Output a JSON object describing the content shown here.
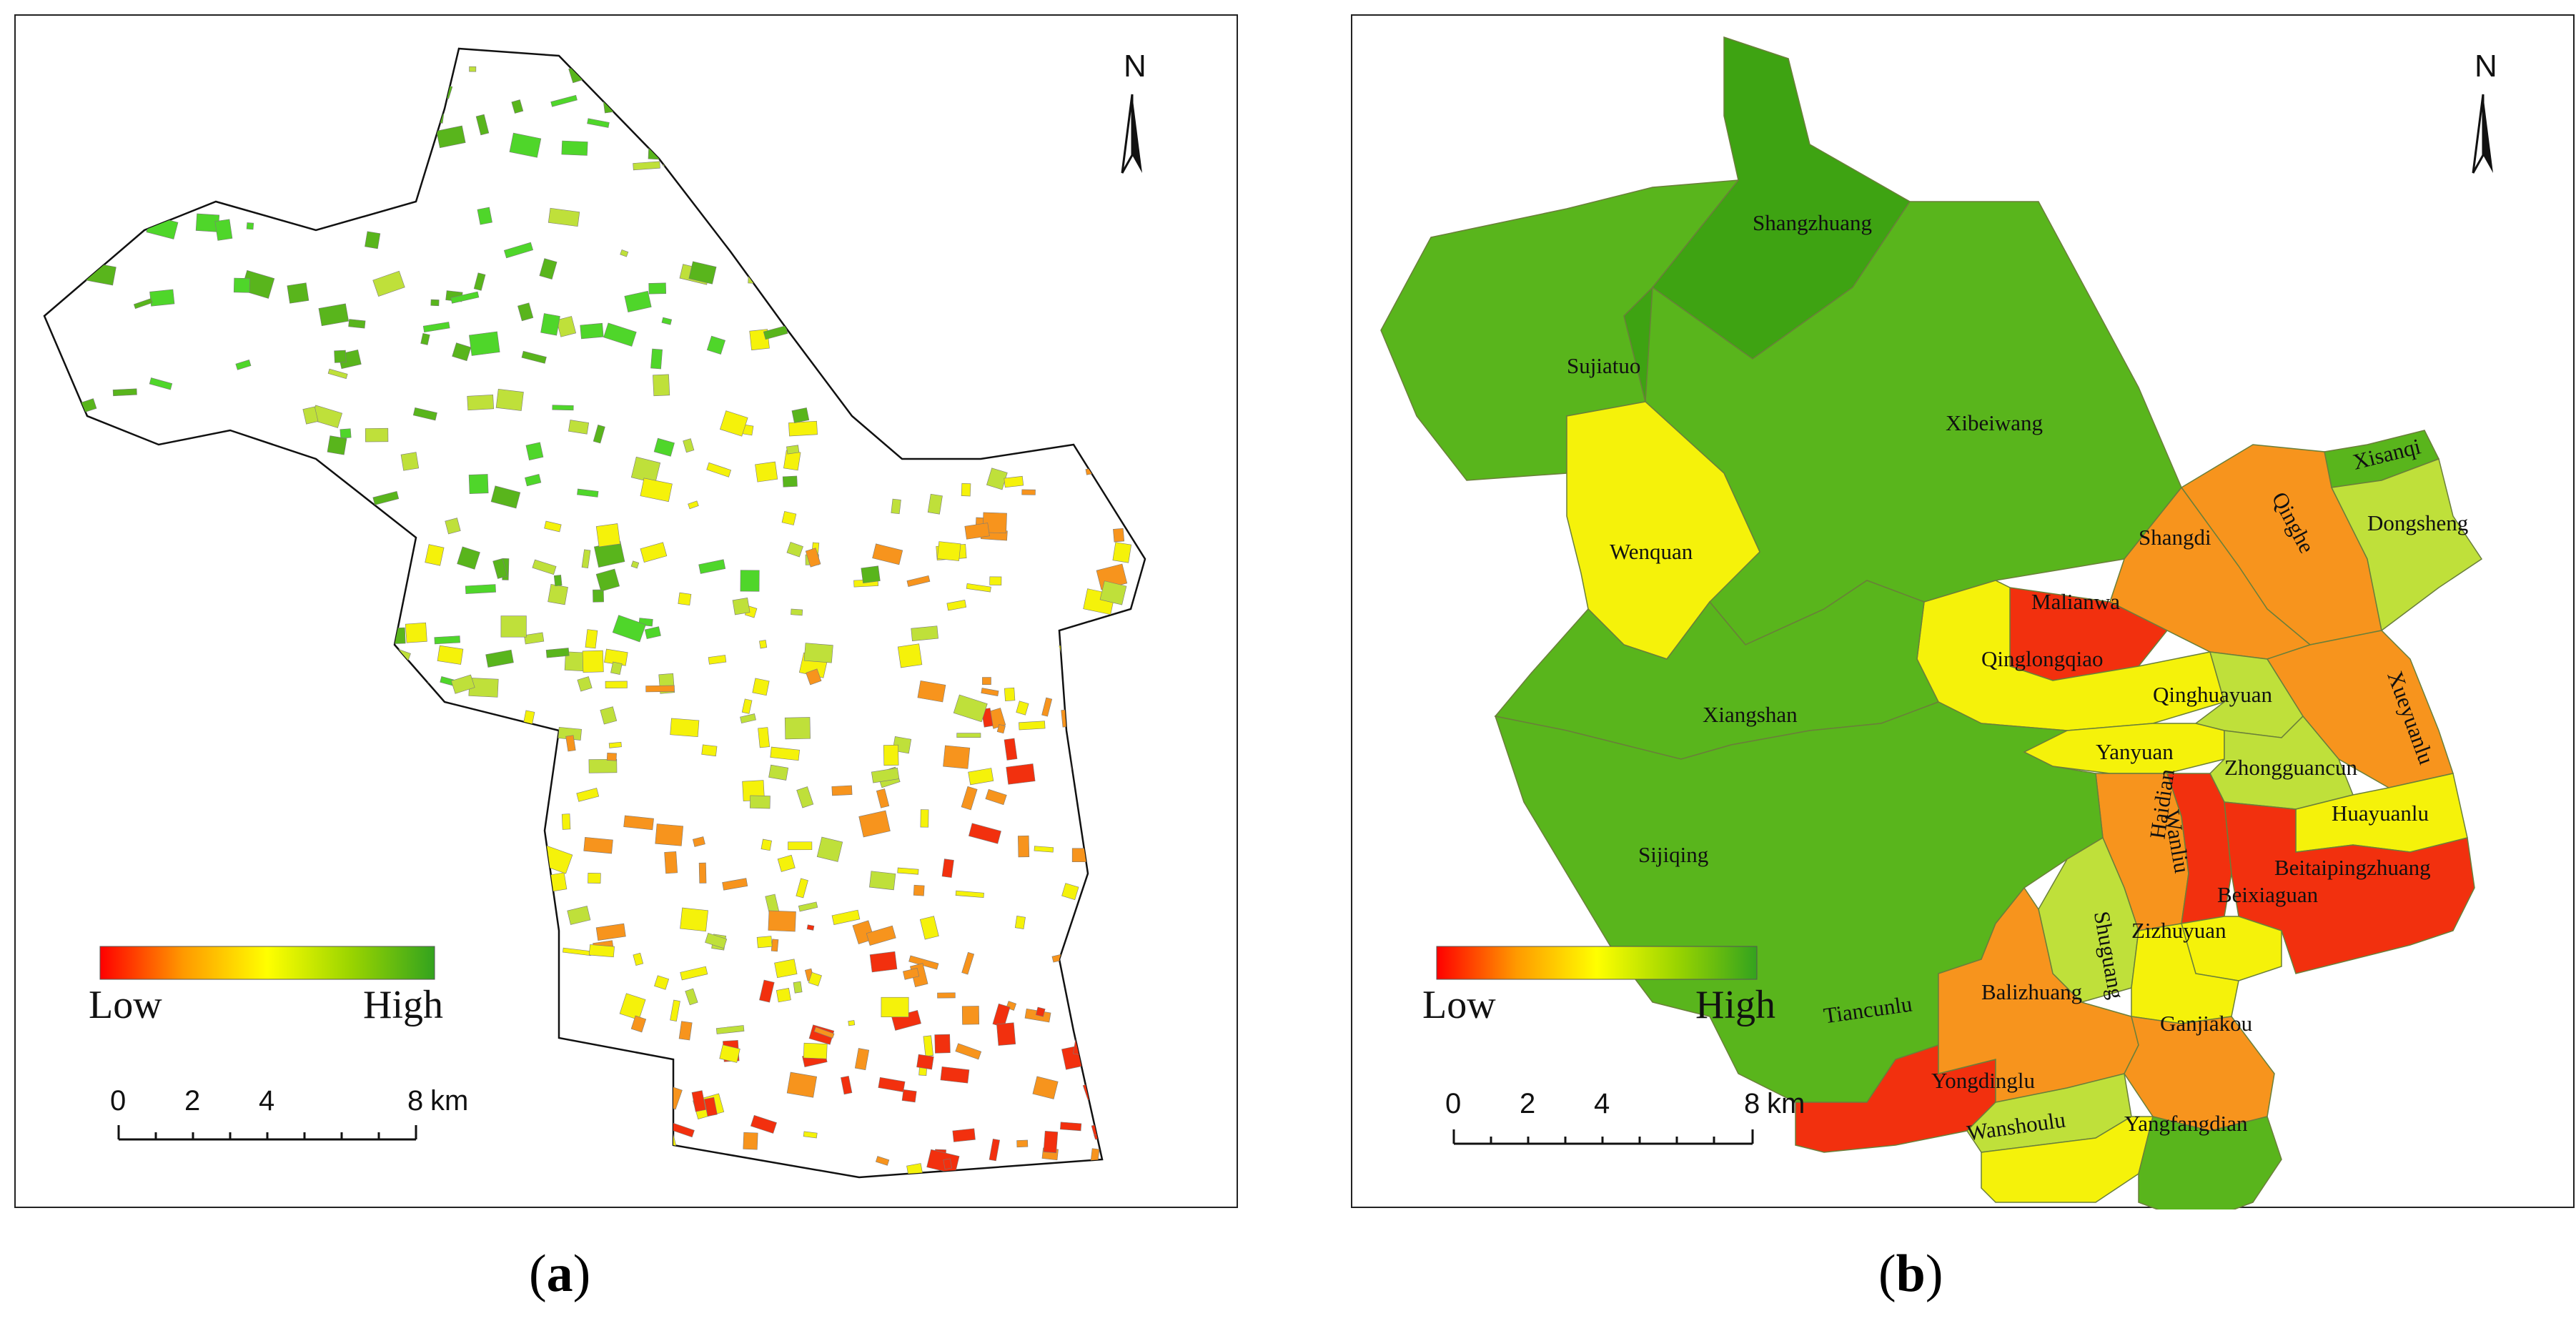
{
  "panels": {
    "a": {
      "caption_letter": "a"
    },
    "b": {
      "caption_letter": "b"
    }
  },
  "north_arrow": {
    "label": "N"
  },
  "legend": {
    "low_label": "Low",
    "high_label": "High",
    "gradient_colors": [
      "#ff0000",
      "#ffa500",
      "#ffff00",
      "#7fd000",
      "#33a31e"
    ]
  },
  "scale_bar": {
    "ticks": [
      "0",
      "2",
      "4",
      "8"
    ],
    "unit": "km"
  },
  "colors": {
    "red": "#f2300e",
    "orange": "#f7941d",
    "yellow": "#f5f20a",
    "light_green": "#bfe03a",
    "green": "#59b51c",
    "dark_green": "#3ea312"
  },
  "districts": [
    {
      "name": "Shangzhuang",
      "level": "dark_green"
    },
    {
      "name": "Sujiatuo",
      "level": "green"
    },
    {
      "name": "Xibeiwang",
      "level": "green"
    },
    {
      "name": "Wenquan",
      "level": "yellow"
    },
    {
      "name": "Xisanqi",
      "level": "green"
    },
    {
      "name": "Qinghe",
      "level": "orange"
    },
    {
      "name": "Dongsheng",
      "level": "light_green"
    },
    {
      "name": "Shangdi",
      "level": "orange"
    },
    {
      "name": "Malianwa",
      "level": "red"
    },
    {
      "name": "Qinglongqiao",
      "level": "yellow"
    },
    {
      "name": "Xueyuanlu",
      "level": "orange"
    },
    {
      "name": "Qinghuayuan",
      "level": "light_green"
    },
    {
      "name": "Xiangshan",
      "level": "green"
    },
    {
      "name": "Yanyuan",
      "level": "yellow"
    },
    {
      "name": "Zhongguancun",
      "level": "light_green"
    },
    {
      "name": "Wanliu",
      "level": "orange"
    },
    {
      "name": "Haidian",
      "level": "red"
    },
    {
      "name": "Huayuanlu",
      "level": "yellow"
    },
    {
      "name": "Sijiqing",
      "level": "green"
    },
    {
      "name": "Beitaipingzhuang",
      "level": "red"
    },
    {
      "name": "Shuguang",
      "level": "light_green"
    },
    {
      "name": "Beixiaguan",
      "level": "yellow"
    },
    {
      "name": "Zizhuyuan",
      "level": "yellow"
    },
    {
      "name": "Tiancunlu",
      "level": "red"
    },
    {
      "name": "Balizhuang",
      "level": "orange"
    },
    {
      "name": "Ganjiakou",
      "level": "orange"
    },
    {
      "name": "Yongdinglu",
      "level": "light_green"
    },
    {
      "name": "Wanshoulu",
      "level": "yellow"
    },
    {
      "name": "Yangfangdian",
      "level": "green"
    }
  ]
}
